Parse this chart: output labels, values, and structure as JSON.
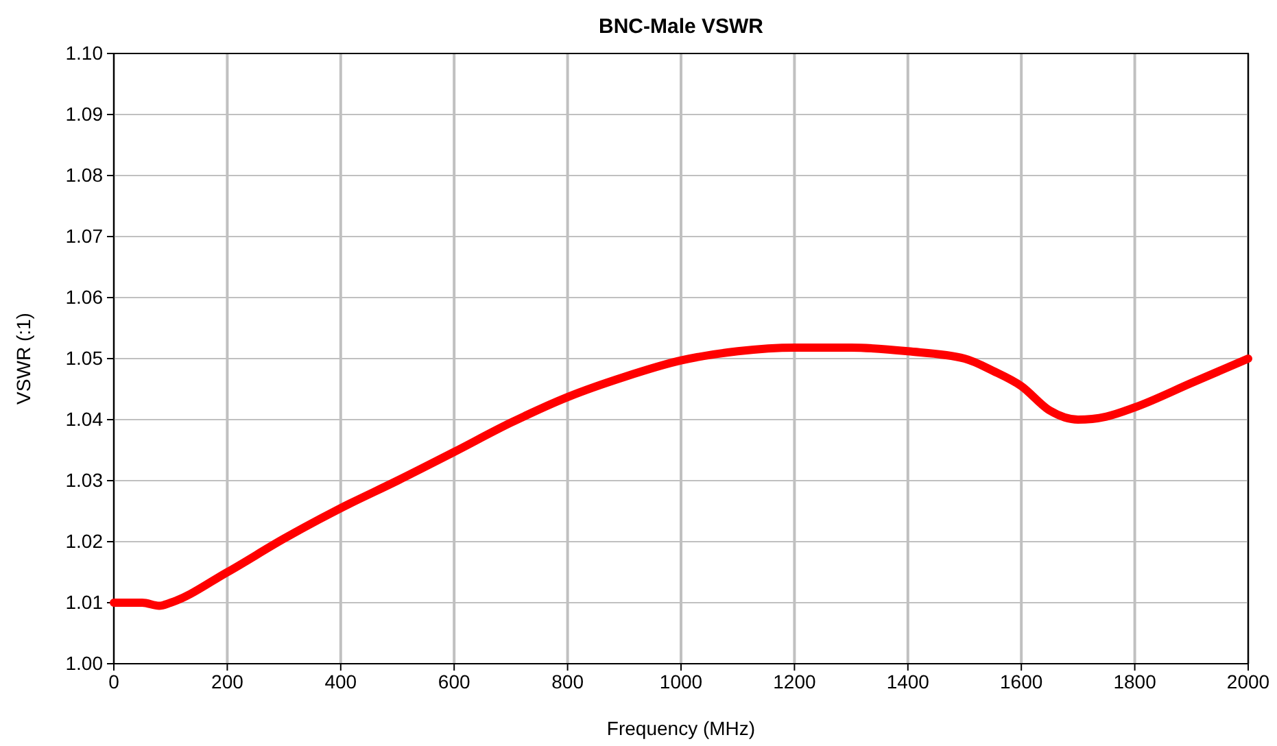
{
  "chart_data": {
    "type": "line",
    "title": "BNC-Male VSWR",
    "xlabel": "Frequency (MHz)",
    "ylabel": "VSWR (:1)",
    "series": [
      {
        "color": "#ff0000",
        "x": [
          0,
          50,
          80,
          100,
          200,
          300,
          400,
          500,
          600,
          700,
          800,
          900,
          1000,
          1100,
          1200,
          1300,
          1400,
          1500,
          1550,
          1600,
          1650,
          1700,
          1750,
          1800,
          1900,
          2000
        ],
        "values": [
          1.01,
          1.01,
          1.0095,
          1.01,
          1.015,
          1.0205,
          1.0255,
          1.03,
          1.0347,
          1.0395,
          1.0437,
          1.047,
          1.0497,
          1.0512,
          1.0518,
          1.0518,
          1.0512,
          1.05,
          1.048,
          1.0455,
          1.0415,
          1.04,
          1.0405,
          1.042,
          1.046,
          1.05
        ]
      }
    ],
    "xlim": [
      0,
      2000
    ],
    "xticks": [
      0,
      200,
      400,
      600,
      800,
      1000,
      1200,
      1400,
      1600,
      1800,
      2000
    ],
    "ylim": [
      1.0,
      1.1
    ],
    "yticks": [
      {
        "value": 1.0,
        "label": "1.00"
      },
      {
        "value": 1.01,
        "label": "1.01"
      },
      {
        "value": 1.02,
        "label": "1.02"
      },
      {
        "value": 1.03,
        "label": "1.03"
      },
      {
        "value": 1.04,
        "label": "1.04"
      },
      {
        "value": 1.05,
        "label": "1.05"
      },
      {
        "value": 1.06,
        "label": "1.06"
      },
      {
        "value": 1.07,
        "label": "1.07"
      },
      {
        "value": 1.08,
        "label": "1.08"
      },
      {
        "value": 1.09,
        "label": "1.09"
      },
      {
        "value": 1.1,
        "label": "1.10"
      }
    ],
    "grid": true,
    "marker": "none",
    "line_style": "solid"
  }
}
